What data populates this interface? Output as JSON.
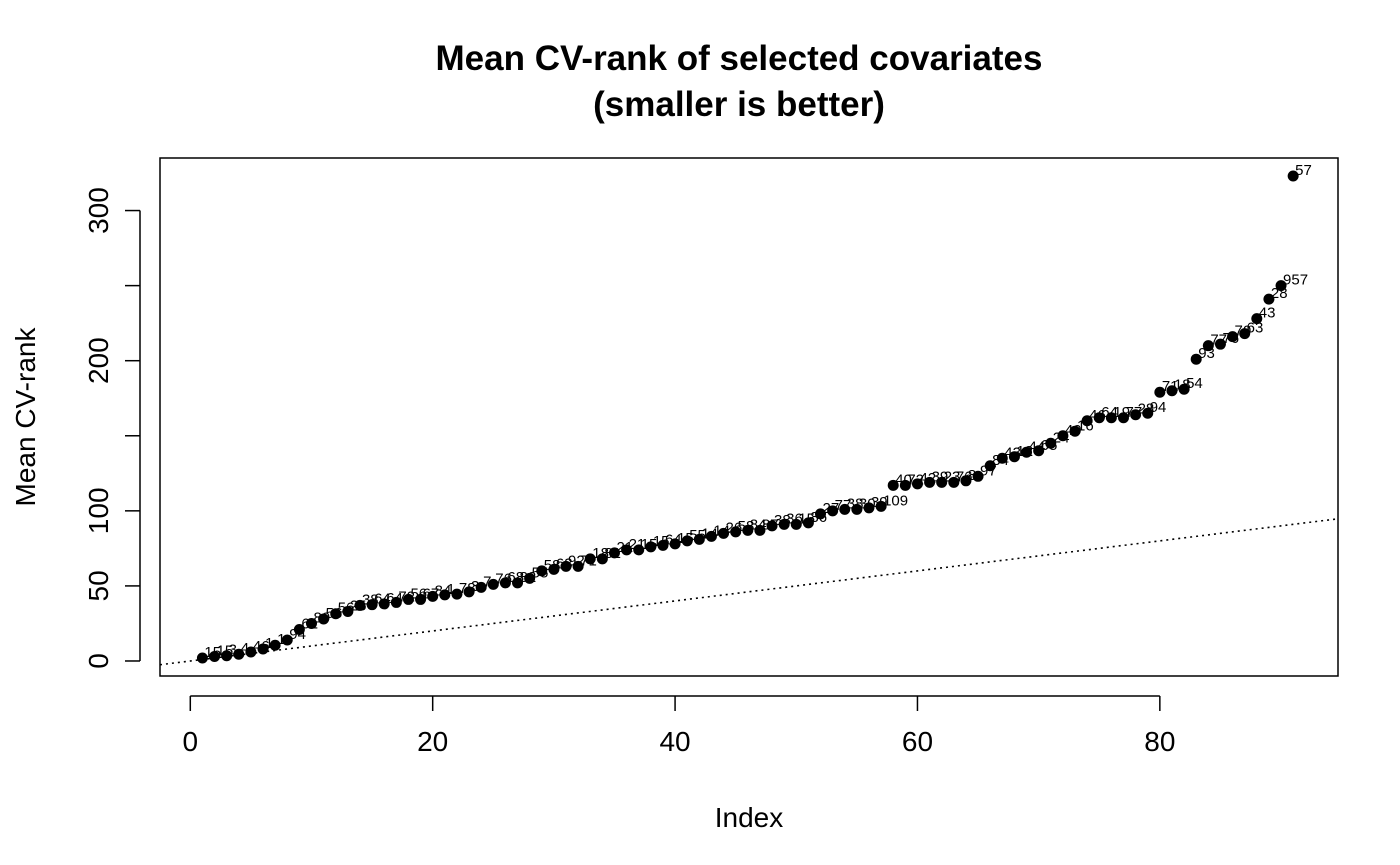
{
  "chart_data": {
    "type": "scatter",
    "title": "Mean CV-rank of selected covariates",
    "subtitle": "(smaller is better)",
    "xlabel": "Index",
    "ylabel": "Mean CV-rank",
    "xlim": [
      -2.5,
      94.7
    ],
    "ylim": [
      -10,
      335
    ],
    "x_ticks": [
      0,
      20,
      40,
      60,
      80
    ],
    "y_ticks": [
      0,
      50,
      100,
      150,
      200,
      250,
      300
    ],
    "y_tick_labels": [
      "0",
      "50",
      "100",
      "",
      "200",
      "",
      "300"
    ],
    "reference_line": {
      "style": "dotted",
      "intercept": 0,
      "slope": 1
    },
    "marker": "filled-circle",
    "x": [
      1,
      2,
      3,
      4,
      5,
      6,
      7,
      8,
      9,
      10,
      11,
      12,
      13,
      14,
      15,
      16,
      17,
      18,
      19,
      20,
      21,
      22,
      23,
      24,
      25,
      26,
      27,
      28,
      29,
      30,
      31,
      32,
      33,
      34,
      35,
      36,
      37,
      38,
      39,
      40,
      41,
      42,
      43,
      44,
      45,
      46,
      47,
      48,
      49,
      50,
      51,
      52,
      53,
      54,
      55,
      56,
      57,
      58,
      59,
      60,
      61,
      62,
      63,
      64,
      65,
      66,
      67,
      68,
      69,
      70,
      71,
      72,
      73,
      74,
      75,
      76,
      77,
      78,
      79,
      80,
      81,
      82,
      83,
      84,
      85,
      86,
      87,
      88,
      89,
      90,
      91
    ],
    "y": [
      2,
      3,
      3.5,
      4.5,
      6,
      8,
      10.5,
      14,
      21,
      25,
      28,
      31.5,
      33,
      37,
      37.5,
      38,
      39,
      41,
      41,
      43,
      44,
      44.5,
      46,
      49,
      51,
      52,
      52,
      55,
      60,
      61,
      63,
      63,
      68,
      68,
      72,
      74,
      74,
      76,
      77,
      78,
      80,
      81,
      83,
      85,
      86,
      87,
      87,
      90,
      91,
      91,
      92,
      98,
      100,
      101,
      101,
      102,
      103,
      117,
      117,
      118,
      119,
      119,
      119,
      120,
      123,
      130,
      135,
      136,
      139,
      140,
      145,
      150,
      153,
      160,
      162,
      162,
      162,
      164,
      165,
      179,
      180,
      181,
      201,
      210,
      211,
      216,
      218,
      228,
      241,
      250,
      323
    ],
    "labels": [
      "15",
      "15",
      "3",
      "4",
      "46",
      "1",
      "1",
      "94",
      "61",
      "89",
      "56",
      "56",
      "25",
      "38",
      "64",
      "64",
      "72",
      "56",
      "67",
      "84",
      "1",
      "78",
      "3",
      "7",
      "76",
      "68",
      "82",
      "55",
      "58",
      "63",
      "92",
      "71",
      "18",
      "81",
      "21",
      "21",
      "15",
      "15",
      "64",
      "15",
      "55",
      "14",
      "14",
      "26",
      "58",
      "84",
      "87",
      "38",
      "36",
      "15",
      "86",
      "27",
      "77",
      "38",
      "30",
      "39",
      "109",
      "40",
      "72",
      "42",
      "39",
      "23",
      "76",
      "8",
      "97",
      "84",
      "43",
      "12",
      "44",
      "65",
      "24",
      "49",
      "16",
      "46",
      "64",
      "19",
      "77",
      "28",
      "94",
      "71",
      "18",
      "54",
      "93",
      "77",
      "76",
      "70",
      "63",
      "43",
      "28",
      "957",
      "57"
    ]
  }
}
